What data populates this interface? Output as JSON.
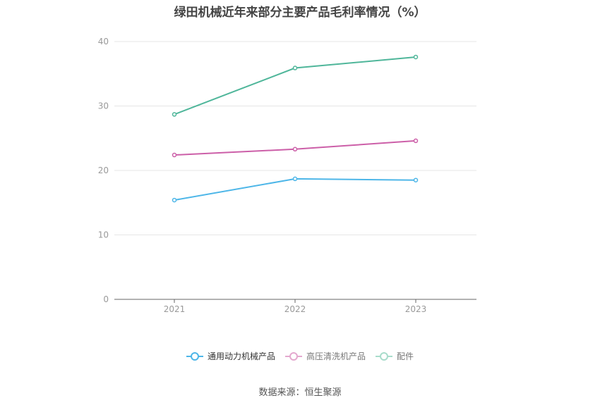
{
  "chart_data": {
    "type": "line",
    "title": "绿田机械近年来部分主要产品毛利率情况（%）",
    "categories": [
      "2021",
      "2022",
      "2023"
    ],
    "ylim": [
      0,
      40
    ],
    "yticks": [
      0,
      10,
      20,
      30,
      40
    ],
    "grid": true,
    "legend_position": "bottom",
    "series": [
      {
        "name": "通用动力机械产品",
        "color": "#4db6e8",
        "values": [
          15.4,
          18.7,
          18.5
        ]
      },
      {
        "name": "高压清洗机产品",
        "color": "#cc5fa8",
        "values": [
          22.4,
          23.3,
          24.6
        ]
      },
      {
        "name": "配件",
        "color": "#4fb69a",
        "values": [
          28.7,
          35.9,
          37.6
        ]
      }
    ]
  },
  "source": "数据来源：恒生聚源"
}
